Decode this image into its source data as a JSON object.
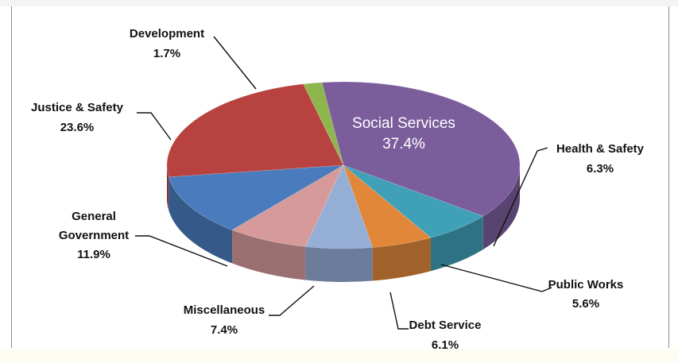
{
  "chart_data": {
    "type": "pie",
    "style": "3d",
    "slices": [
      {
        "label": "Social Services",
        "value": 37.4,
        "pct_text": "37.4%",
        "color": "#7b5d9c"
      },
      {
        "label": "Health & Safety",
        "value": 6.3,
        "pct_text": "6.3%",
        "color": "#3fa0b8"
      },
      {
        "label": "Public Works",
        "value": 5.6,
        "pct_text": "5.6%",
        "color": "#e0873a"
      },
      {
        "label": "Debt Service",
        "value": 6.1,
        "pct_text": "6.1%",
        "color": "#95aed6"
      },
      {
        "label": "Miscellaneous",
        "value": 7.4,
        "pct_text": "7.4%",
        "color": "#d69a9a"
      },
      {
        "label": "General Government",
        "value": 11.9,
        "pct_text": "11.9%",
        "color": "#4a7bbd"
      },
      {
        "label": "Justice & Safety",
        "value": 23.6,
        "pct_text": "23.6%",
        "color": "#b7423f"
      },
      {
        "label": "Development",
        "value": 1.7,
        "pct_text": "1.7%",
        "color": "#8fb54d"
      }
    ],
    "label_text": {
      "social_services": {
        "line1": "Social Services",
        "line2": "37.4%"
      },
      "health_safety": {
        "line1": "Health & Safety",
        "line2": "6.3%"
      },
      "public_works": {
        "line1": "Public Works",
        "line2": "5.6%"
      },
      "debt_service": {
        "line1": "Debt Service",
        "line2": "6.1%"
      },
      "miscellaneous": {
        "line1": "Miscellaneous",
        "line2": "7.4%"
      },
      "general_government": {
        "line1": "General",
        "line2": "Government",
        "line3": "11.9%"
      },
      "justice_safety": {
        "line1": "Justice & Safety",
        "line2": "23.6%"
      },
      "development": {
        "line1": "Development",
        "line2": "1.7%"
      }
    }
  }
}
